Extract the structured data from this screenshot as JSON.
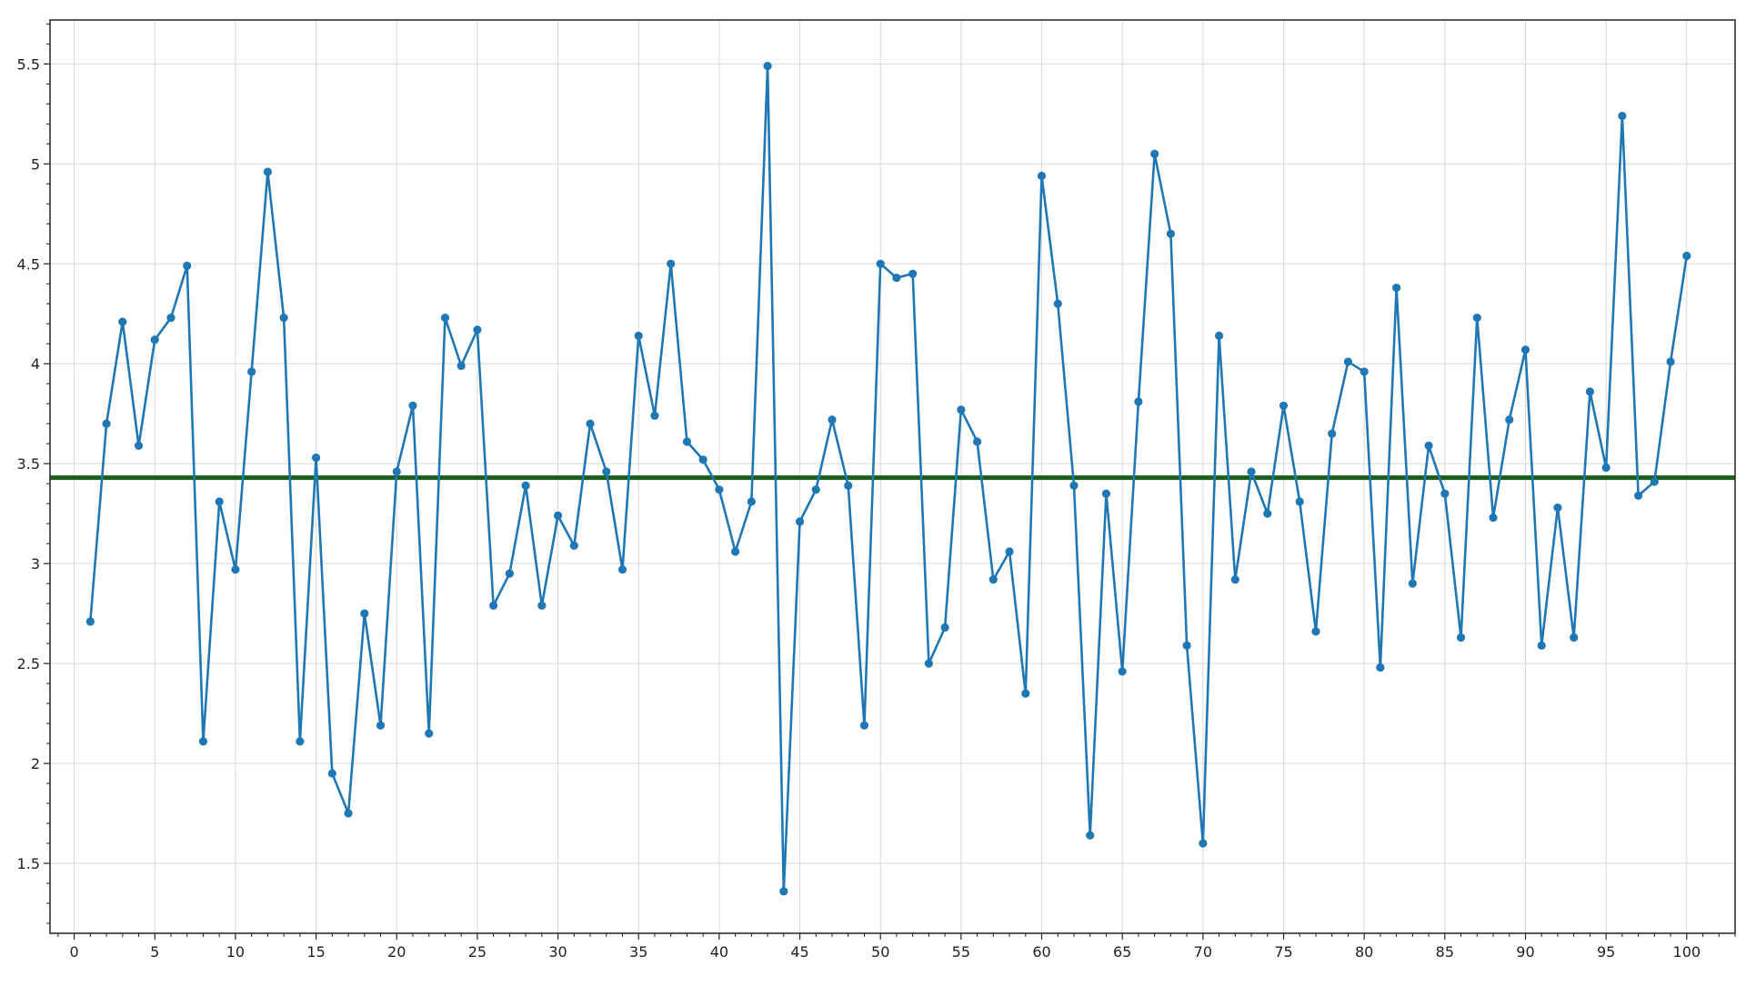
{
  "chart_data": {
    "type": "line",
    "title": "",
    "xlabel": "",
    "ylabel": "",
    "xlim": [
      -1.5,
      103
    ],
    "ylim": [
      1.15,
      5.72
    ],
    "grid": true,
    "x_ticks": [
      0,
      5,
      10,
      15,
      20,
      25,
      30,
      35,
      40,
      45,
      50,
      55,
      60,
      65,
      70,
      75,
      80,
      85,
      90,
      95,
      100
    ],
    "x_tick_labels": [
      "0",
      "5",
      "10",
      "15",
      "20",
      "25",
      "30",
      "35",
      "40",
      "45",
      "50",
      "55",
      "60",
      "65",
      "70",
      "75",
      "80",
      "85",
      "90",
      "95",
      "100"
    ],
    "y_ticks": [
      1.5,
      2,
      2.5,
      3,
      3.5,
      4,
      4.5,
      5,
      5.5
    ],
    "y_tick_labels": [
      "1.5",
      "2",
      "2.5",
      "3",
      "3.5",
      "4",
      "4.5",
      "5",
      "5.5"
    ],
    "x_minor_step": 1,
    "y_minor_step": 0.1,
    "series": [
      {
        "color": "#1f77b4",
        "x": [
          1,
          2,
          3,
          4,
          5,
          6,
          7,
          8,
          9,
          10,
          11,
          12,
          13,
          14,
          15,
          16,
          17,
          18,
          19,
          20,
          21,
          22,
          23,
          24,
          25,
          26,
          27,
          28,
          29,
          30,
          31,
          32,
          33,
          34,
          35,
          36,
          37,
          38,
          39,
          40,
          41,
          42,
          43,
          44,
          45,
          46,
          47,
          48,
          49,
          50,
          51,
          52,
          53,
          54,
          55,
          56,
          57,
          58,
          59,
          60,
          61,
          62,
          63,
          64,
          65,
          66,
          67,
          68,
          69,
          70,
          71,
          72,
          73,
          74,
          75,
          76,
          77,
          78,
          79,
          80,
          81,
          82,
          83,
          84,
          85,
          86,
          87,
          88,
          89,
          90,
          91,
          92,
          93,
          94,
          95,
          96,
          97,
          98,
          99,
          100
        ],
        "values": [
          2.71,
          3.7,
          4.21,
          3.59,
          4.12,
          4.23,
          4.49,
          2.11,
          3.31,
          2.97,
          3.96,
          4.96,
          4.23,
          2.11,
          3.53,
          1.95,
          1.75,
          2.75,
          2.19,
          3.46,
          3.79,
          2.15,
          4.23,
          3.99,
          4.17,
          2.79,
          2.95,
          3.39,
          2.79,
          3.24,
          3.09,
          3.7,
          3.46,
          2.97,
          4.14,
          3.74,
          4.5,
          3.61,
          3.52,
          3.37,
          3.06,
          3.31,
          5.49,
          1.36,
          3.21,
          3.37,
          3.72,
          3.39,
          2.19,
          4.5,
          4.43,
          4.45,
          2.5,
          2.68,
          3.77,
          3.61,
          2.92,
          3.06,
          2.35,
          4.94,
          4.3,
          3.39,
          1.64,
          3.35,
          2.46,
          3.81,
          5.05,
          4.65,
          2.59,
          1.6,
          4.14,
          2.92,
          3.46,
          3.25,
          3.79,
          3.31,
          2.66,
          3.65,
          4.01,
          3.96,
          2.48,
          4.38,
          2.9,
          3.59,
          3.35,
          2.63,
          4.23,
          3.23,
          3.72,
          4.07,
          2.59,
          3.28,
          2.63,
          3.86,
          3.48,
          5.24,
          3.34,
          3.41,
          4.01,
          4.54
        ]
      }
    ],
    "reference_line": {
      "y": 3.43,
      "color": "#1a5e1a"
    }
  }
}
